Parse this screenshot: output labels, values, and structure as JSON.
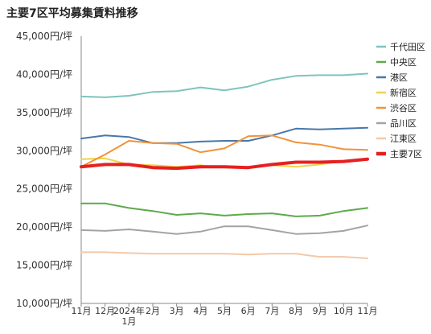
{
  "chart_data": {
    "type": "line",
    "title": "主要7区平均募集賃料推移",
    "xlabel": "",
    "ylabel": "",
    "ylim": [
      10000,
      45000
    ],
    "yticks": [
      {
        "value": 10000,
        "label": "10,000円/坪"
      },
      {
        "value": 15000,
        "label": "15,000円/坪"
      },
      {
        "value": 20000,
        "label": "20,000円/坪"
      },
      {
        "value": 25000,
        "label": "25,000円/坪"
      },
      {
        "value": 30000,
        "label": "30,000円/坪"
      },
      {
        "value": 35000,
        "label": "35,000円/坪"
      },
      {
        "value": 40000,
        "label": "40,000円/坪"
      },
      {
        "value": 45000,
        "label": "45,000円/坪"
      }
    ],
    "categories": [
      "11月",
      "12月",
      "2024年 1月",
      "2月",
      "3月",
      "4月",
      "5月",
      "6月",
      "7月",
      "8月",
      "9月",
      "10月",
      "11月"
    ],
    "x_tick_labels": [
      "11月",
      "12月",
      "2024年",
      "2月",
      "3月",
      "4月",
      "5月",
      "6月",
      "7月",
      "8月",
      "9月",
      "10月",
      "11月"
    ],
    "x_tick_sublabels": [
      "",
      "",
      "1月",
      "",
      "",
      "",
      "",
      "",
      "",
      "",
      "",
      "",
      ""
    ],
    "grid": false,
    "legend_position": "right",
    "series": [
      {
        "name": "千代田区",
        "color": "#7fc4bd",
        "width": 2,
        "values": [
          37100,
          37000,
          37200,
          37700,
          37800,
          38300,
          37900,
          38400,
          39300,
          39800,
          39900,
          39900,
          40100
        ]
      },
      {
        "name": "中央区",
        "color": "#5daa4a",
        "width": 2,
        "values": [
          23100,
          23100,
          22500,
          22100,
          21600,
          21800,
          21500,
          21700,
          21800,
          21400,
          21500,
          22100,
          22500
        ]
      },
      {
        "name": "港区",
        "color": "#4877a8",
        "width": 2,
        "values": [
          31600,
          32000,
          31800,
          31000,
          31000,
          31200,
          31300,
          31300,
          32000,
          32900,
          32800,
          32900,
          33000
        ]
      },
      {
        "name": "新宿区",
        "color": "#f0d34a",
        "width": 2,
        "values": [
          28900,
          29000,
          28200,
          28100,
          27900,
          28100,
          27800,
          27800,
          28100,
          27900,
          28200,
          28700,
          28800
        ]
      },
      {
        "name": "渋谷区",
        "color": "#f0933a",
        "width": 2,
        "values": [
          27900,
          29500,
          31300,
          31000,
          30900,
          29800,
          30300,
          31900,
          32000,
          31100,
          30800,
          30200,
          30100
        ]
      },
      {
        "name": "品川区",
        "color": "#a4a4a4",
        "width": 2,
        "values": [
          19600,
          19500,
          19700,
          19400,
          19100,
          19400,
          20100,
          20100,
          19600,
          19100,
          19200,
          19500,
          20200
        ]
      },
      {
        "name": "江東区",
        "color": "#f3c9a9",
        "width": 2,
        "values": [
          16700,
          16700,
          16600,
          16500,
          16500,
          16500,
          16500,
          16400,
          16500,
          16500,
          16100,
          16100,
          15900
        ]
      },
      {
        "name": "主要7区",
        "color": "#e62020",
        "width": 4,
        "values": [
          27900,
          28200,
          28200,
          27800,
          27700,
          27900,
          27900,
          27800,
          28200,
          28500,
          28500,
          28600,
          28900
        ]
      }
    ]
  }
}
